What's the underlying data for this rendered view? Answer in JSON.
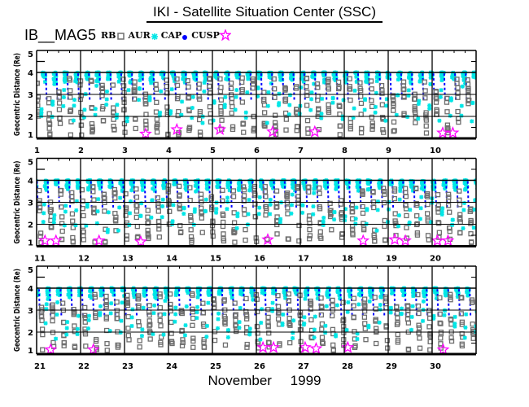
{
  "chart_data": {
    "type": "scatter",
    "title": "IKI - Satellite Situation Center (SSC)",
    "subtitle": "IB__MAG5",
    "xlabel": "November 1999",
    "ylabel": "Geocentric Distance (Re)",
    "ylim": [
      1,
      5
    ],
    "yticks": [
      "1",
      "2",
      "3",
      "4",
      "5"
    ],
    "grid": true,
    "legend_placement": "top-left",
    "legend": [
      {
        "label": "RB",
        "marker": "square",
        "color": "#6e6e6e"
      },
      {
        "label": "AUR",
        "marker": "asterisk",
        "color": "#00e6e6"
      },
      {
        "label": "CAP",
        "marker": "dot",
        "color": "#0000ff"
      },
      {
        "label": "CUSP",
        "marker": "star",
        "color": "#ff00ff"
      }
    ],
    "panels": [
      {
        "days": [
          "1",
          "2",
          "3",
          "4",
          "5",
          "6",
          "7",
          "8",
          "9",
          "10"
        ],
        "start_day": 1
      },
      {
        "days": [
          "11",
          "12",
          "13",
          "14",
          "15",
          "16",
          "17",
          "18",
          "19",
          "20"
        ],
        "start_day": 11
      },
      {
        "days": [
          "21",
          "22",
          "23",
          "24",
          "25",
          "26",
          "27",
          "28",
          "29",
          "30"
        ],
        "start_day": 21
      }
    ],
    "orbit_model": {
      "period_days": 0.245,
      "first_apogee_day": 1.17,
      "apogee_re": 4.0,
      "perigee_re": 1.15
    },
    "cusp_events": [
      {
        "day": 3.48,
        "re": 1.2
      },
      {
        "day": 4.19,
        "re": 1.4
      },
      {
        "day": 5.17,
        "re": 1.4
      },
      {
        "day": 6.37,
        "re": 1.3
      },
      {
        "day": 7.33,
        "re": 1.3
      },
      {
        "day": 10.24,
        "re": 1.25
      },
      {
        "day": 10.47,
        "re": 1.25
      },
      {
        "day": 11.19,
        "re": 1.25
      },
      {
        "day": 11.44,
        "re": 1.25
      },
      {
        "day": 12.42,
        "re": 1.25
      },
      {
        "day": 13.37,
        "re": 1.2
      },
      {
        "day": 16.26,
        "re": 1.3
      },
      {
        "day": 18.43,
        "re": 1.25
      },
      {
        "day": 19.15,
        "re": 1.3
      },
      {
        "day": 19.39,
        "re": 1.25
      },
      {
        "day": 20.12,
        "re": 1.25
      },
      {
        "day": 20.36,
        "re": 1.25
      },
      {
        "day": 21.32,
        "re": 1.2
      },
      {
        "day": 22.29,
        "re": 1.2
      },
      {
        "day": 26.15,
        "re": 1.3
      },
      {
        "day": 26.39,
        "re": 1.3
      },
      {
        "day": 27.11,
        "re": 1.3
      },
      {
        "day": 27.36,
        "re": 1.25
      },
      {
        "day": 28.08,
        "re": 1.3
      },
      {
        "day": 30.25,
        "re": 1.2
      }
    ]
  }
}
